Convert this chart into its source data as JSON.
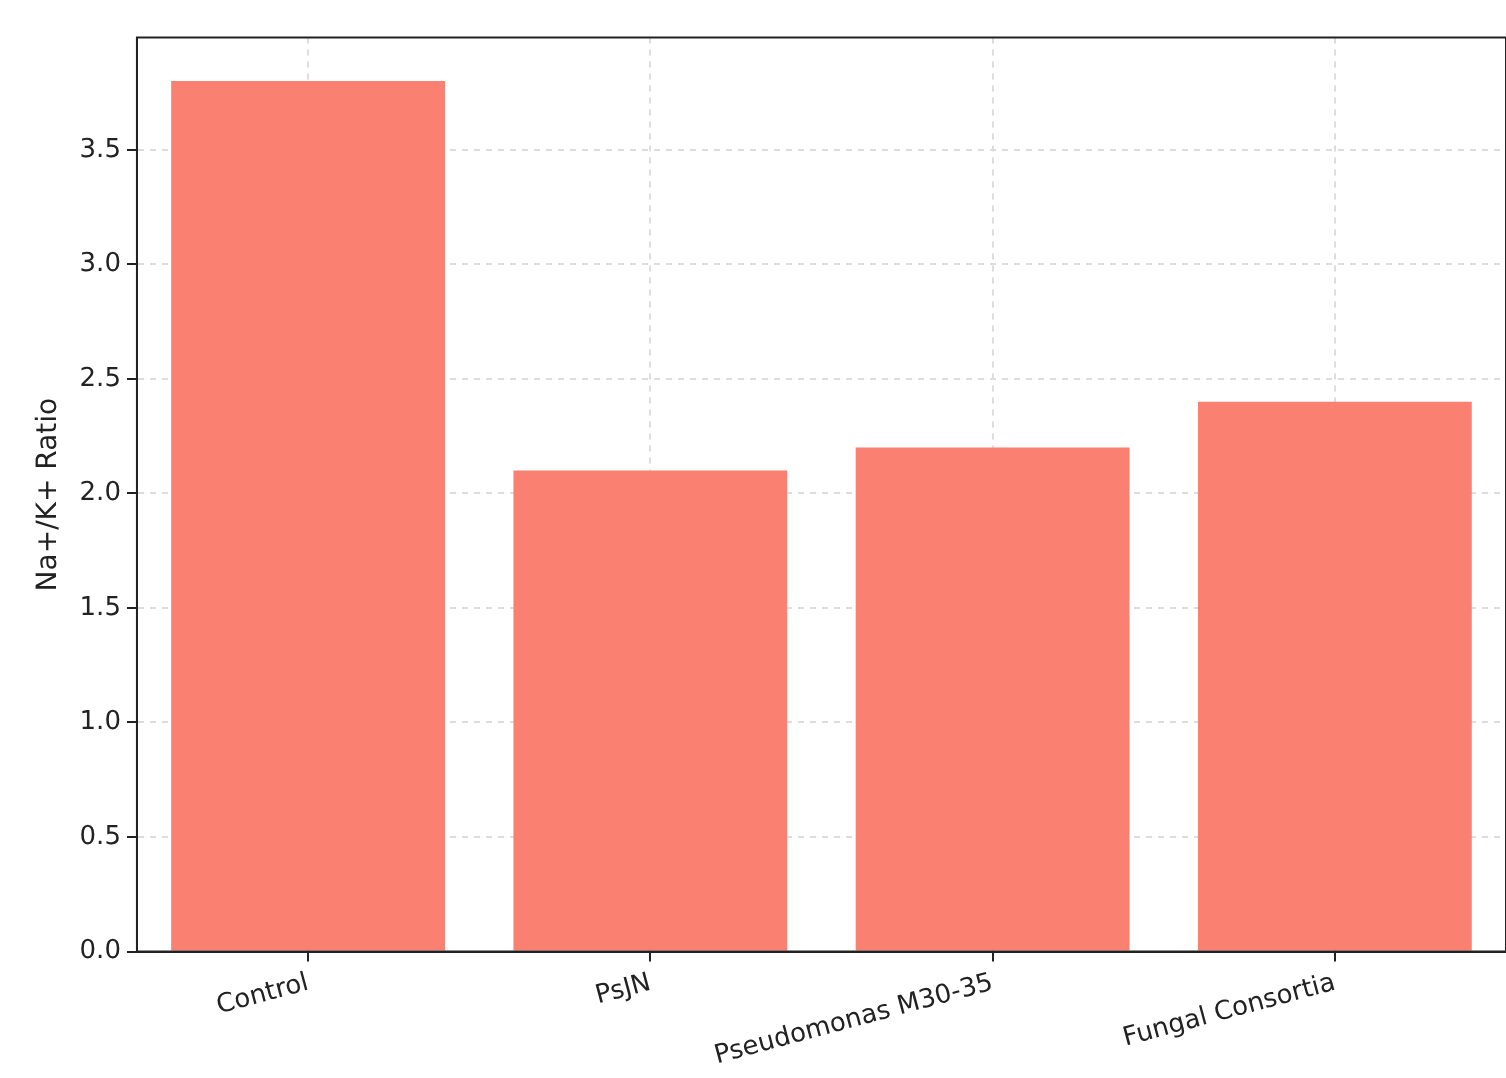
{
  "chart_data": {
    "type": "bar",
    "ylabel": "Na+/K+ Ratio",
    "categories": [
      "Control",
      "PsJN",
      "Pseudomonas M30-35",
      "Fungal Consortia"
    ],
    "values": [
      3.8,
      2.1,
      2.2,
      2.4
    ],
    "color": "#fa8072",
    "ylim": [
      0,
      3.99
    ],
    "yticks": [
      {
        "value": 0,
        "label": "0.0"
      },
      0.5,
      {
        "value": 1,
        "label": "1.0"
      },
      1.5,
      {
        "value": 2,
        "label": "2.0"
      },
      2.5,
      {
        "value": 3,
        "label": "3.0"
      },
      3.5
    ],
    "grid": true
  }
}
